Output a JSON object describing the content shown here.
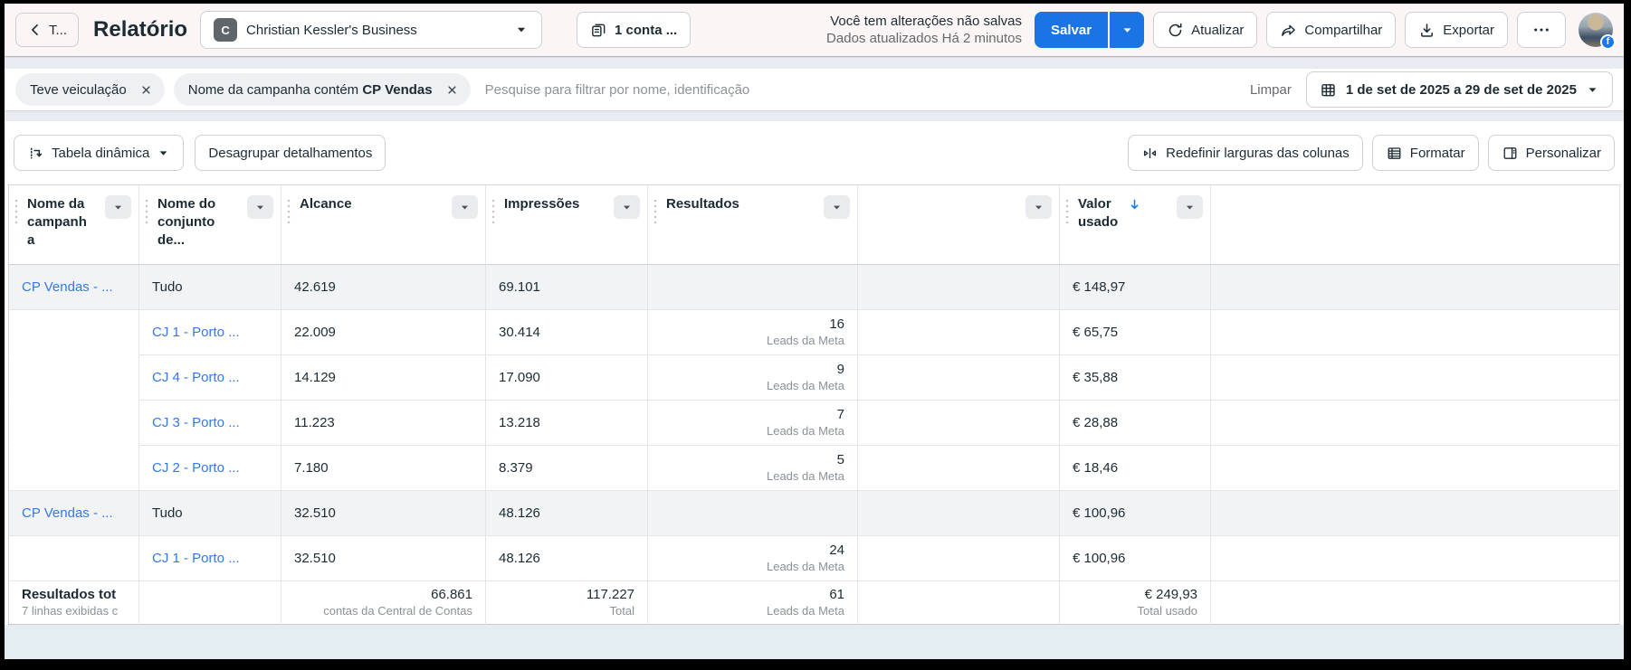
{
  "topbar": {
    "back_label": "T...",
    "title": "Relatório",
    "business": {
      "avatar_letter": "C",
      "label": "Christian Kessler's Business"
    },
    "accounts_label": "1 conta ...",
    "status_line1": "Você tem alterações não salvas",
    "status_line2": "Dados atualizados Há 2 minutos",
    "save_label": "Salvar",
    "refresh_label": "Atualizar",
    "share_label": "Compartilhar",
    "export_label": "Exportar",
    "more_label": "•••"
  },
  "filters": {
    "chips": [
      {
        "label": "Teve veiculação",
        "value": ""
      },
      {
        "label": "Nome da campanha contém",
        "value": "CP Vendas"
      }
    ],
    "search_placeholder": "Pesquise para filtrar por nome, identificação",
    "clear_label": "Limpar",
    "date_range": "1 de set de 2025 a 29 de set de 2025"
  },
  "toolbar": {
    "pivot_label": "Tabela dinâmica",
    "ungroup_label": "Desagrupar detalhamentos",
    "reset_columns_label": "Redefinir larguras das colunas",
    "format_label": "Formatar",
    "customize_label": "Personalizar"
  },
  "table": {
    "columns": [
      {
        "label": "Nome da campanha",
        "menu": true
      },
      {
        "label": "Nome do conjunto de...",
        "menu": true
      },
      {
        "label": "Alcance",
        "menu": true
      },
      {
        "label": "Impressões",
        "menu": true
      },
      {
        "label": "Resultados",
        "menu": true
      },
      {
        "label": "",
        "menu": true
      },
      {
        "label": "Valor usado",
        "menu": true,
        "sorted": "desc"
      },
      {
        "label": "",
        "menu": false
      }
    ],
    "rows": [
      {
        "campaign": "CP Vendas - ...",
        "adset": "Tudo",
        "adset_is_link": false,
        "summary": true,
        "reach": "42.619",
        "impressions": "69.101",
        "results": "",
        "results_label": "",
        "spend": "€ 148,97"
      },
      {
        "campaign": "",
        "adset": "CJ 1 - Porto ...",
        "adset_is_link": true,
        "summary": false,
        "reach": "22.009",
        "impressions": "30.414",
        "results": "16",
        "results_label": "Leads da Meta",
        "spend": "€ 65,75"
      },
      {
        "campaign": "",
        "adset": "CJ 4 - Porto ...",
        "adset_is_link": true,
        "summary": false,
        "reach": "14.129",
        "impressions": "17.090",
        "results": "9",
        "results_label": "Leads da Meta",
        "spend": "€ 35,88"
      },
      {
        "campaign": "",
        "adset": "CJ 3 - Porto ...",
        "adset_is_link": true,
        "summary": false,
        "reach": "11.223",
        "impressions": "13.218",
        "results": "7",
        "results_label": "Leads da Meta",
        "spend": "€ 28,88"
      },
      {
        "campaign": "",
        "adset": "CJ 2 - Porto ...",
        "adset_is_link": true,
        "summary": false,
        "reach": "7.180",
        "impressions": "8.379",
        "results": "5",
        "results_label": "Leads da Meta",
        "spend": "€ 18,46"
      },
      {
        "campaign": "CP Vendas - ...",
        "adset": "Tudo",
        "adset_is_link": false,
        "summary": true,
        "reach": "32.510",
        "impressions": "48.126",
        "results": "",
        "results_label": "",
        "spend": "€ 100,96"
      },
      {
        "campaign": "",
        "adset": "CJ 1 - Porto ...",
        "adset_is_link": true,
        "summary": false,
        "reach": "32.510",
        "impressions": "48.126",
        "results": "24",
        "results_label": "Leads da Meta",
        "spend": "€ 100,96"
      }
    ],
    "footer": {
      "title": "Resultados tot",
      "subtitle": "7 linhas exibidas c",
      "reach_value": "66.861",
      "reach_label": "contas da Central de Contas",
      "impressions_value": "117.227",
      "impressions_label": "Total",
      "results_value": "61",
      "results_label": "Leads da Meta",
      "spend_value": "€ 249,93",
      "spend_label": "Total usado"
    }
  },
  "colors": {
    "primary_button": "#1b74e4",
    "link": "#3578e5",
    "sort_arrow": "#1877f2"
  }
}
